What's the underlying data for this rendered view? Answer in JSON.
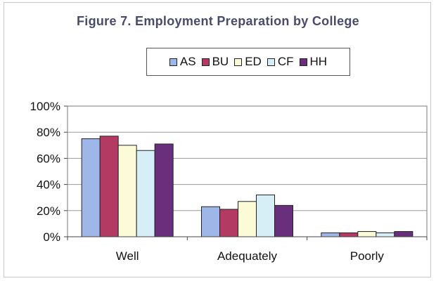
{
  "chart_data": {
    "type": "bar",
    "title": "Figure 7. Employment Preparation by College",
    "categories": [
      "Well",
      "Adequately",
      "Poorly"
    ],
    "series": [
      {
        "name": "AS",
        "values": [
          75,
          23,
          3
        ],
        "color": "#9fb6e8"
      },
      {
        "name": "BU",
        "values": [
          77,
          21,
          3
        ],
        "color": "#b23a63"
      },
      {
        "name": "ED",
        "values": [
          70,
          27,
          4
        ],
        "color": "#fcfbd8"
      },
      {
        "name": "CF",
        "values": [
          66,
          32,
          3
        ],
        "color": "#d6eff7"
      },
      {
        "name": "HH",
        "values": [
          71,
          24,
          4
        ],
        "color": "#6a2f7c"
      }
    ],
    "ylim": [
      0,
      100
    ],
    "yticks": [
      0,
      20,
      40,
      60,
      80,
      100
    ],
    "ytick_labels": [
      "0%",
      "20%",
      "40%",
      "60%",
      "80%",
      "100%"
    ],
    "grid": true,
    "legend_position": "top",
    "xlabel": "",
    "ylabel": ""
  }
}
